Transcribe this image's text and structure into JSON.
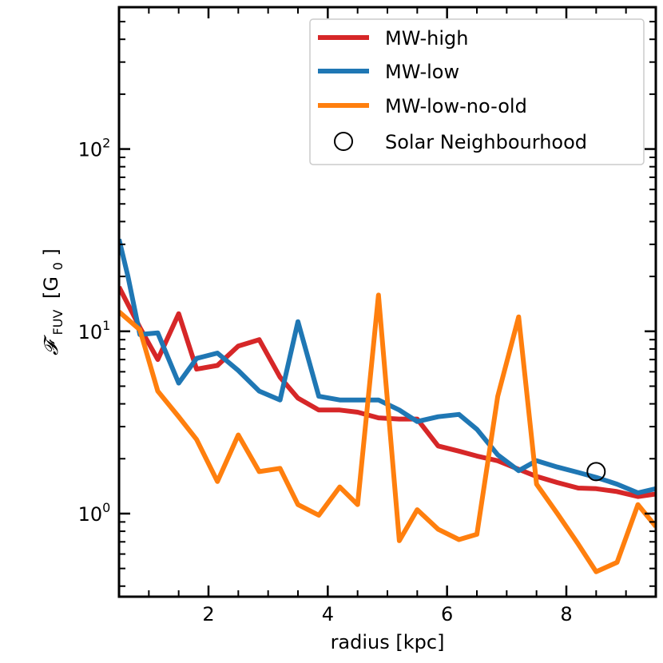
{
  "chart_data": {
    "type": "line",
    "title": "",
    "xlabel": "radius [kpc]",
    "ylabel": "𝓕",
    "ylabel_sub": "FUV",
    "ylabel_unit": "[G",
    "ylabel_unit_sub": "0",
    "ylabel_unit_close": "]",
    "yscale": "log",
    "xlim": [
      0.5,
      9.5
    ],
    "ylim": [
      0.35,
      600
    ],
    "x_ticks": [
      {
        "value": 2,
        "label": "2"
      },
      {
        "value": 4,
        "label": "4"
      },
      {
        "value": 6,
        "label": "6"
      },
      {
        "value": 8,
        "label": "8"
      }
    ],
    "y_ticks": [
      {
        "value": 1,
        "base": "10",
        "exp": "0"
      },
      {
        "value": 10,
        "base": "10",
        "exp": "1"
      },
      {
        "value": 100,
        "base": "10",
        "exp": "2"
      }
    ],
    "legend_position": "top-right",
    "series": [
      {
        "name": "MW-high",
        "color": "#d62728",
        "x": [
          0.5,
          0.85,
          1.15,
          1.5,
          1.8,
          2.15,
          2.5,
          2.85,
          3.2,
          3.5,
          3.85,
          4.2,
          4.5,
          4.85,
          5.2,
          5.5,
          5.85,
          6.2,
          6.5,
          6.85,
          7.2,
          7.5,
          7.85,
          8.2,
          8.5,
          8.85,
          9.2,
          9.5
        ],
        "y": [
          17.5,
          10.5,
          7.0,
          12.5,
          6.2,
          6.5,
          8.3,
          9.0,
          5.6,
          4.3,
          3.7,
          3.7,
          3.6,
          3.35,
          3.3,
          3.3,
          2.35,
          2.2,
          2.07,
          1.95,
          1.75,
          1.6,
          1.48,
          1.38,
          1.37,
          1.32,
          1.24,
          1.28
        ]
      },
      {
        "name": "MW-low",
        "color": "#1f77b4",
        "x": [
          0.5,
          0.65,
          0.85,
          1.15,
          1.5,
          1.8,
          2.15,
          2.5,
          2.85,
          3.2,
          3.5,
          3.85,
          4.2,
          4.5,
          4.85,
          5.2,
          5.5,
          5.85,
          6.2,
          6.5,
          6.85,
          7.2,
          7.5,
          7.85,
          8.2,
          8.5,
          8.85,
          9.2,
          9.5
        ],
        "y": [
          32.0,
          20.0,
          9.6,
          9.8,
          5.2,
          7.1,
          7.6,
          6.1,
          4.7,
          4.2,
          11.3,
          4.4,
          4.2,
          4.2,
          4.2,
          3.7,
          3.2,
          3.4,
          3.5,
          2.9,
          2.1,
          1.72,
          1.95,
          1.8,
          1.68,
          1.58,
          1.45,
          1.3,
          1.37
        ]
      },
      {
        "name": "MW-low-no-old",
        "color": "#ff7f0e",
        "x": [
          0.5,
          0.85,
          1.15,
          1.5,
          1.8,
          2.15,
          2.5,
          2.85,
          3.2,
          3.5,
          3.85,
          4.2,
          4.5,
          4.85,
          5.2,
          5.5,
          5.85,
          6.2,
          6.5,
          6.85,
          7.2,
          7.5,
          7.85,
          8.2,
          8.5,
          8.85,
          9.2,
          9.5
        ],
        "y": [
          12.8,
          10.2,
          4.7,
          3.4,
          2.55,
          1.5,
          2.7,
          1.7,
          1.77,
          1.12,
          0.98,
          1.4,
          1.12,
          15.8,
          0.71,
          1.05,
          0.82,
          0.72,
          0.77,
          4.4,
          12.0,
          1.45,
          1.0,
          0.68,
          0.48,
          0.54,
          1.12,
          0.85
        ]
      }
    ],
    "points": [
      {
        "name": "Solar Neighbourhood",
        "x": 8.5,
        "y": 1.7,
        "marker": "open-circle"
      }
    ]
  }
}
